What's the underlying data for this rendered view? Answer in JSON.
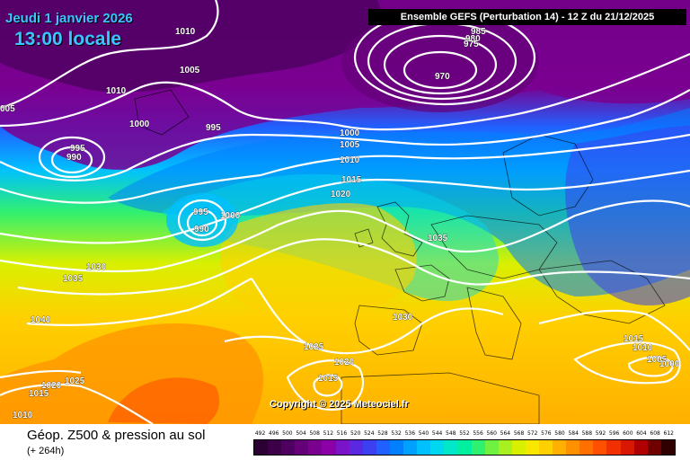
{
  "header": {
    "date": "Jeudi 1 janvier 2026",
    "local_time": "13:00 locale",
    "run_info": "Ensemble GEFS  (Perturbation 14)  -  12 Z du 21/12/2025"
  },
  "map": {
    "copyright": "Copyright © 2025 Meteociel.fr",
    "isobar_labels": [
      {
        "text": "1010"
      },
      {
        "text": "1005"
      },
      {
        "text": "1010"
      },
      {
        "text": "005"
      },
      {
        "text": "1000"
      },
      {
        "text": "995"
      },
      {
        "text": "990"
      },
      {
        "text": "995"
      },
      {
        "text": "985"
      },
      {
        "text": "980"
      },
      {
        "text": "975"
      },
      {
        "text": "970"
      },
      {
        "text": "1000"
      },
      {
        "text": "1005"
      },
      {
        "text": "1010"
      },
      {
        "text": "1015"
      },
      {
        "text": "1020"
      },
      {
        "text": "995"
      },
      {
        "text": "990"
      },
      {
        "text": "1000"
      },
      {
        "text": "1035"
      },
      {
        "text": "1030"
      },
      {
        "text": "1035"
      },
      {
        "text": "1040"
      },
      {
        "text": "1030"
      },
      {
        "text": "1025"
      },
      {
        "text": "1020"
      },
      {
        "text": "1015"
      },
      {
        "text": "1025"
      },
      {
        "text": "1020"
      },
      {
        "text": "1015"
      },
      {
        "text": "1010"
      },
      {
        "text": "1015"
      },
      {
        "text": "1010"
      },
      {
        "text": "1005"
      },
      {
        "text": "1000"
      }
    ]
  },
  "footer": {
    "product_title": "Géop. Z500 & pression au sol",
    "lead_time": "(+ 264h)"
  },
  "legend": {
    "values": [
      "492",
      "496",
      "500",
      "504",
      "508",
      "512",
      "516",
      "520",
      "524",
      "528",
      "532",
      "536",
      "540",
      "544",
      "548",
      "552",
      "556",
      "560",
      "564",
      "568",
      "572",
      "576",
      "580",
      "584",
      "588",
      "592",
      "596",
      "600",
      "604",
      "608",
      "612"
    ],
    "colors": [
      "#2b0033",
      "#3c0048",
      "#4d0060",
      "#640078",
      "#7a0090",
      "#8c00a8",
      "#7a14c8",
      "#5a28e0",
      "#3c40f0",
      "#2060ff",
      "#0080ff",
      "#00a0ff",
      "#00c0ff",
      "#00d8f0",
      "#00e8c8",
      "#00f0a0",
      "#30f070",
      "#70f040",
      "#a8f020",
      "#d8f000",
      "#f8e800",
      "#ffd000",
      "#ffb000",
      "#ff9000",
      "#ff7000",
      "#ff5000",
      "#f03000",
      "#d81800",
      "#b00000",
      "#700000",
      "#300000"
    ]
  }
}
